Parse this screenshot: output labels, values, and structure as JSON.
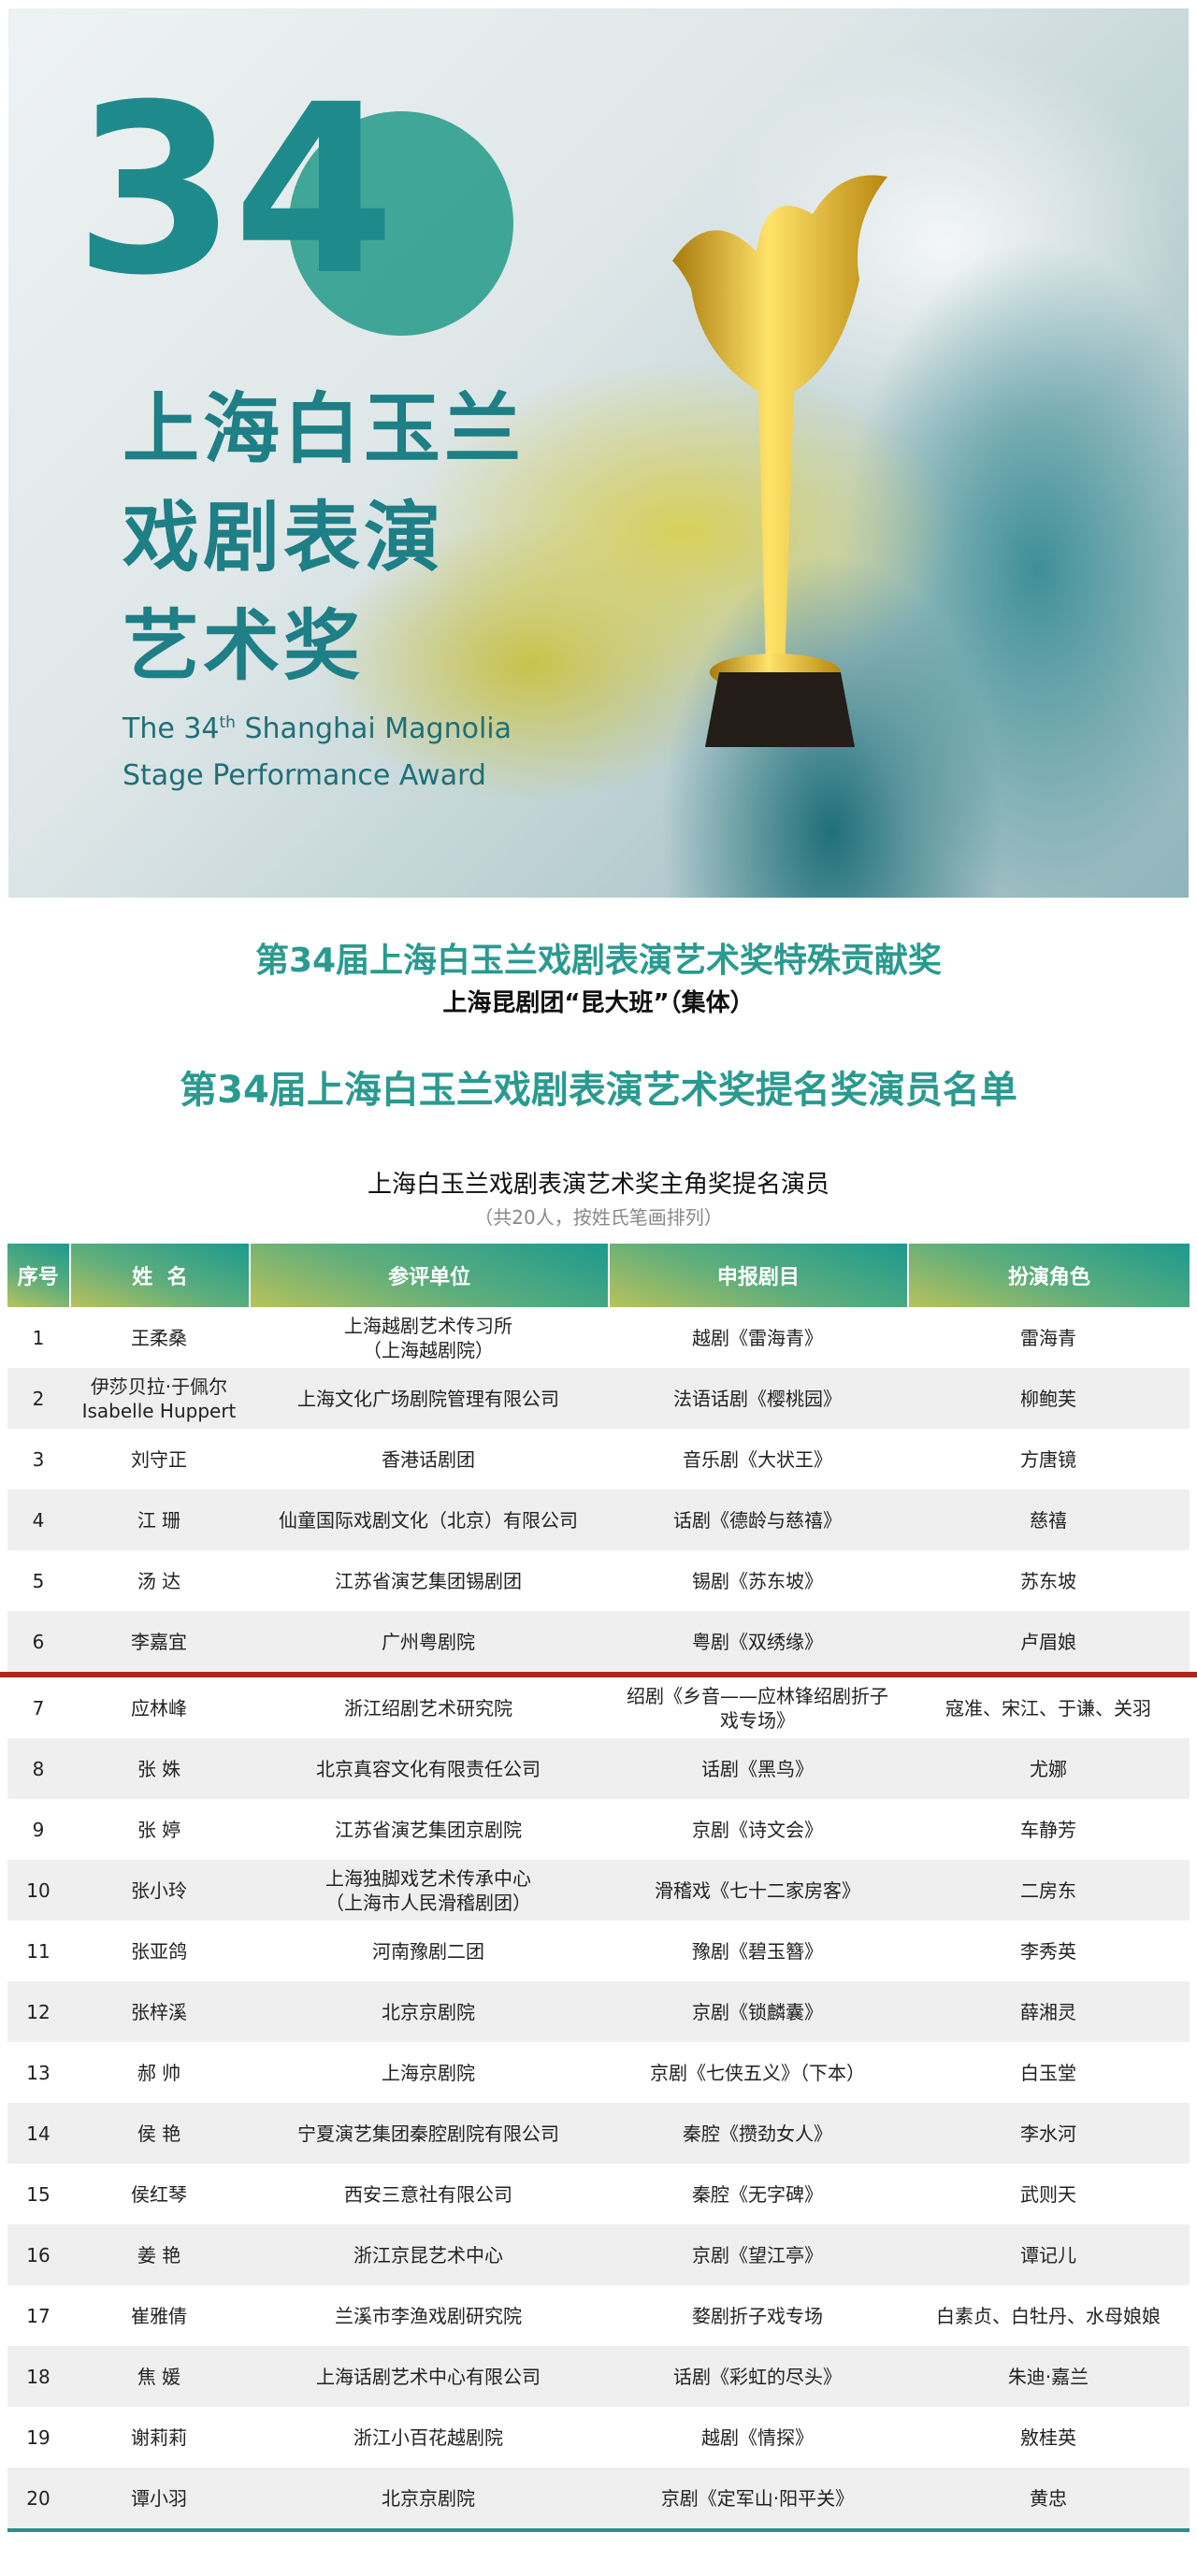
{
  "banner": {
    "number": "34",
    "cn_title_lines": [
      "上海白玉兰",
      "戏剧表演",
      "艺术奖"
    ],
    "en_line1_pre": "The 34",
    "en_line1_sup": "th",
    "en_line1_post": " Shanghai Magnolia",
    "en_line2": "Stage Performance Award"
  },
  "special": {
    "title": "第34届上海白玉兰戏剧表演艺术奖特殊贡献奖",
    "recipient": "上海昆剧团“昆大班”（集体）"
  },
  "nomination_title": "第34届上海白玉兰戏剧表演艺术奖提名奖演员名单",
  "table": {
    "title": "上海白玉兰戏剧表演艺术奖主角奖提名演员",
    "note": "（共20人，按姓氏笔画排列）",
    "headers": [
      "序号",
      "姓  名",
      "参评单位",
      "申报剧目",
      "扮演角色"
    ],
    "rows": [
      [
        "1",
        "王柔桑",
        "上海越剧艺术传习所\n（上海越剧院）",
        "越剧《雷海青》",
        "雷海青"
      ],
      [
        "2",
        "伊莎贝拉·于佩尔\nIsabelle Huppert",
        "上海文化广场剧院管理有限公司",
        "法语话剧《樱桃园》",
        "柳鲍芙"
      ],
      [
        "3",
        "刘守正",
        "香港话剧团",
        "音乐剧《大状王》",
        "方唐镜"
      ],
      [
        "4",
        "江  珊",
        "仙童国际戏剧文化（北京）有限公司",
        "话剧《德龄与慈禧》",
        "慈禧"
      ],
      [
        "5",
        "汤  达",
        "江苏省演艺集团锡剧团",
        "锡剧《苏东坡》",
        "苏东坡"
      ],
      [
        "6",
        "李嘉宜",
        "广州粤剧院",
        "粤剧《双绣缘》",
        "卢眉娘"
      ],
      [
        "7",
        "应林峰",
        "浙江绍剧艺术研究院",
        "绍剧《乡音——应林锋绍剧折子\n戏专场》",
        "寇准、宋江、于谦、关羽"
      ],
      [
        "8",
        "张  姝",
        "北京真容文化有限责任公司",
        "话剧《黑鸟》",
        "尤娜"
      ],
      [
        "9",
        "张  婷",
        "江苏省演艺集团京剧院",
        "京剧《诗文会》",
        "车静芳"
      ],
      [
        "10",
        "张小玲",
        "上海独脚戏艺术传承中心\n（上海市人民滑稽剧团）",
        "滑稽戏《七十二家房客》",
        "二房东"
      ],
      [
        "11",
        "张亚鸽",
        "河南豫剧二团",
        "豫剧《碧玉簪》",
        "李秀英"
      ],
      [
        "12",
        "张梓溪",
        "北京京剧院",
        "京剧《锁麟囊》",
        "薛湘灵"
      ],
      [
        "13",
        "郝  帅",
        "上海京剧院",
        "京剧《七侠五义》（下本）",
        "白玉堂"
      ],
      [
        "14",
        "侯  艳",
        "宁夏演艺集团秦腔剧院有限公司",
        "秦腔《攒劲女人》",
        "李水河"
      ],
      [
        "15",
        "侯红琴",
        "西安三意社有限公司",
        "秦腔《无字碑》",
        "武则天"
      ],
      [
        "16",
        "姜  艳",
        "浙江京昆艺术中心",
        "京剧《望江亭》",
        "谭记儿"
      ],
      [
        "17",
        "崔雅倩",
        "兰溪市李渔戏剧研究院",
        "婺剧折子戏专场",
        "白素贞、白牡丹、水母娘娘"
      ],
      [
        "18",
        "焦  媛",
        "上海话剧艺术中心有限公司",
        "话剧《彩虹的尽头》",
        "朱迪·嘉兰"
      ],
      [
        "19",
        "谢莉莉",
        "浙江小百花越剧院",
        "越剧《情探》",
        "敫桂英"
      ],
      [
        "20",
        "谭小羽",
        "北京京剧院",
        "京剧《定军山·阳平关》",
        "黄忠"
      ]
    ]
  },
  "colors": {
    "accent_teal": "#2a9a90",
    "divider_red": "#b3261a",
    "trophy_gold": "#e0b21c"
  }
}
